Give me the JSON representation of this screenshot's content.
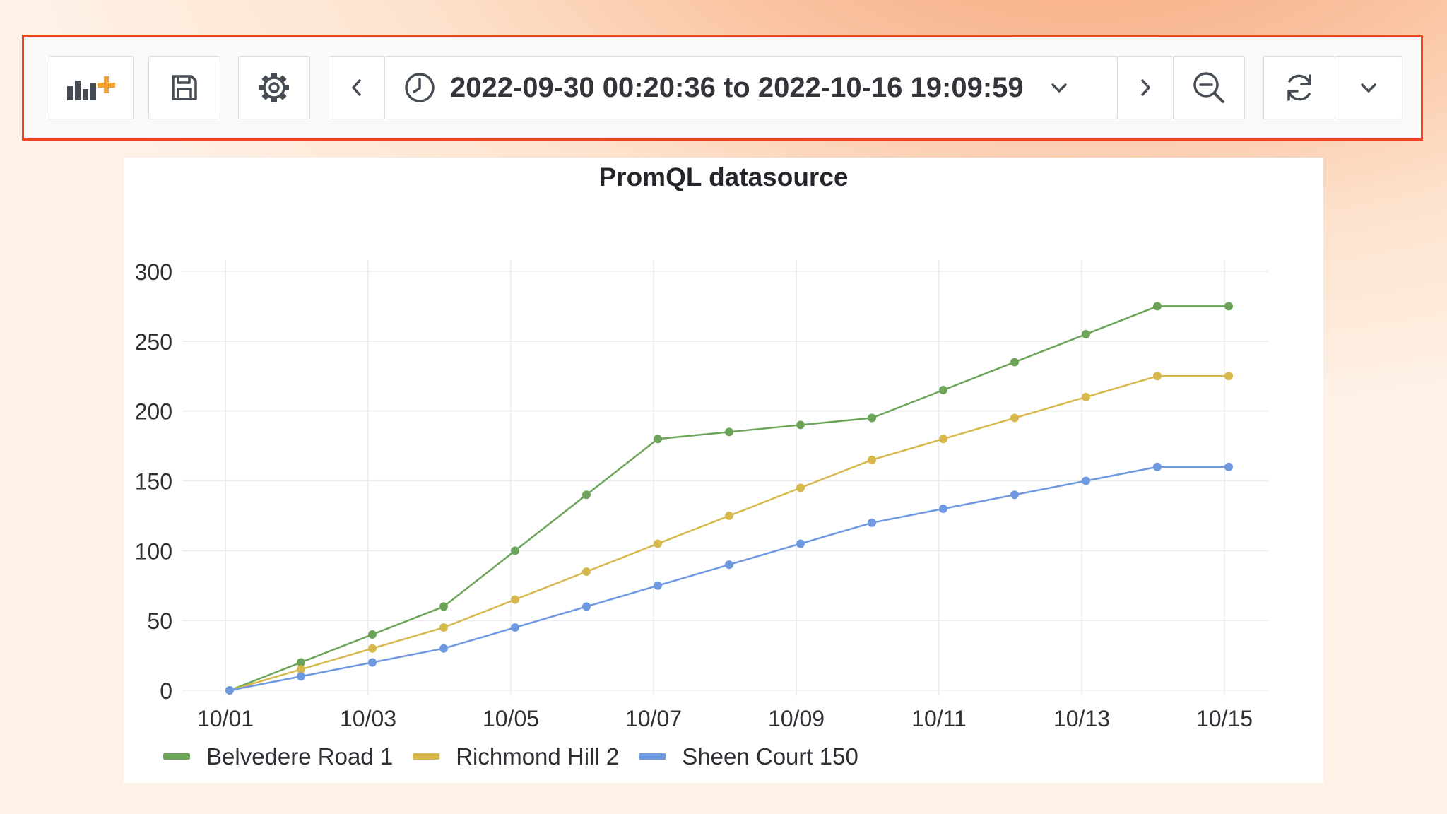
{
  "toolbar": {
    "add_panel_icon": "add-panel-icon",
    "save_icon": "save-icon",
    "settings_icon": "gear-icon",
    "prev_icon": "chevron-left-icon",
    "time_range_icon": "clock-icon",
    "time_range": "2022-09-30 00:20:36 to 2022-10-16 19:09:59",
    "time_dropdown_icon": "chevron-down-icon",
    "next_icon": "chevron-right-icon",
    "zoom_out_icon": "zoom-out-icon",
    "refresh_icon": "refresh-icon",
    "refresh_dropdown_icon": "chevron-down-icon",
    "highlight_color": "#e8491b"
  },
  "panel": {
    "title": "PromQL datasource"
  },
  "chart_data": {
    "type": "line",
    "title": "PromQL datasource",
    "xlabel": "",
    "ylabel": "",
    "x": [
      "10/01",
      "10/02",
      "10/03",
      "10/04",
      "10/05",
      "10/06",
      "10/07",
      "10/08",
      "10/09",
      "10/10",
      "10/11",
      "10/12",
      "10/13",
      "10/14",
      "10/15"
    ],
    "x_tick_labels": [
      "10/01",
      "10/03",
      "10/05",
      "10/07",
      "10/09",
      "10/11",
      "10/13",
      "10/15"
    ],
    "y_ticks": [
      0,
      50,
      100,
      150,
      200,
      250,
      300
    ],
    "ylim": [
      0,
      300
    ],
    "grid": true,
    "legend_position": "bottom-left",
    "series": [
      {
        "name": "Belvedere Road 1",
        "color": "#6ca55a",
        "values": [
          0,
          20,
          40,
          60,
          100,
          140,
          180,
          185,
          190,
          195,
          215,
          235,
          255,
          275,
          275
        ]
      },
      {
        "name": "Richmond Hill 2",
        "color": "#d7b84c",
        "values": [
          0,
          15,
          30,
          45,
          65,
          85,
          105,
          125,
          145,
          165,
          180,
          195,
          210,
          225,
          225
        ]
      },
      {
        "name": "Sheen Court 150",
        "color": "#6e98e0",
        "values": [
          0,
          10,
          20,
          30,
          45,
          60,
          75,
          90,
          105,
          120,
          130,
          140,
          150,
          160,
          160
        ]
      }
    ]
  }
}
